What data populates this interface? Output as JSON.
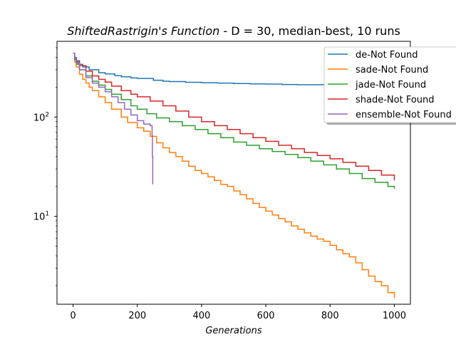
{
  "chart_data": {
    "type": "line",
    "title_math": "ShiftedRastrigin's Function",
    "title_rest": "  - D = 30, median-best, 10 runs",
    "xlabel": "Generations",
    "ylabel": "",
    "yscale": "log",
    "xlim": [
      -50,
      1050
    ],
    "ylim": [
      1.3,
      580
    ],
    "x_ticks": [
      0,
      200,
      400,
      600,
      800,
      1000
    ],
    "x_tick_labels": [
      "0",
      "200",
      "400",
      "600",
      "800",
      "1000"
    ],
    "y_tick_labels": [
      "10",
      "10"
    ],
    "y_tick_exponents": [
      "2",
      "1"
    ],
    "grid": false,
    "legend_position": "upper-right",
    "series": [
      {
        "name": "de-Not Found",
        "color": "#1f77b4",
        "points": [
          [
            0,
            440
          ],
          [
            5,
            400
          ],
          [
            10,
            370
          ],
          [
            20,
            340
          ],
          [
            30,
            320
          ],
          [
            50,
            300
          ],
          [
            80,
            280
          ],
          [
            100,
            272
          ],
          [
            130,
            262
          ],
          [
            150,
            255
          ],
          [
            180,
            248
          ],
          [
            200,
            245
          ],
          [
            250,
            235
          ],
          [
            280,
            230
          ],
          [
            300,
            228
          ],
          [
            350,
            224
          ],
          [
            400,
            222
          ],
          [
            450,
            220
          ],
          [
            500,
            218
          ],
          [
            550,
            216
          ],
          [
            600,
            215
          ],
          [
            650,
            213
          ],
          [
            700,
            212
          ],
          [
            750,
            212
          ],
          [
            800,
            211
          ],
          [
            850,
            210
          ],
          [
            900,
            210
          ],
          [
            950,
            209
          ],
          [
            1000,
            209
          ]
        ]
      },
      {
        "name": "sade-Not Found",
        "color": "#ff7f0e",
        "points": [
          [
            0,
            440
          ],
          [
            5,
            360
          ],
          [
            10,
            320
          ],
          [
            20,
            270
          ],
          [
            30,
            240
          ],
          [
            40,
            220
          ],
          [
            50,
            200
          ],
          [
            60,
            185
          ],
          [
            80,
            160
          ],
          [
            100,
            140
          ],
          [
            120,
            120
          ],
          [
            150,
            100
          ],
          [
            170,
            88
          ],
          [
            200,
            78
          ],
          [
            220,
            72
          ],
          [
            240,
            64
          ],
          [
            260,
            55
          ],
          [
            280,
            49
          ],
          [
            300,
            44
          ],
          [
            320,
            40
          ],
          [
            340,
            36
          ],
          [
            360,
            32
          ],
          [
            380,
            29
          ],
          [
            400,
            27
          ],
          [
            420,
            25
          ],
          [
            440,
            23
          ],
          [
            460,
            21
          ],
          [
            480,
            20
          ],
          [
            500,
            18
          ],
          [
            520,
            16.5
          ],
          [
            540,
            15
          ],
          [
            560,
            13.5
          ],
          [
            580,
            12.3
          ],
          [
            600,
            11.3
          ],
          [
            620,
            10.3
          ],
          [
            640,
            9.5
          ],
          [
            660,
            8.8
          ],
          [
            680,
            8.0
          ],
          [
            700,
            7.4
          ],
          [
            720,
            6.8
          ],
          [
            740,
            6.3
          ],
          [
            760,
            5.9
          ],
          [
            780,
            5.6
          ],
          [
            800,
            5.1
          ],
          [
            820,
            4.6
          ],
          [
            840,
            4.2
          ],
          [
            860,
            3.9
          ],
          [
            880,
            3.4
          ],
          [
            900,
            2.9
          ],
          [
            920,
            2.5
          ],
          [
            940,
            2.2
          ],
          [
            960,
            2.0
          ],
          [
            980,
            1.7
          ],
          [
            1000,
            1.5
          ]
        ]
      },
      {
        "name": "jade-Not Found",
        "color": "#2ca02c",
        "points": [
          [
            0,
            440
          ],
          [
            5,
            380
          ],
          [
            10,
            340
          ],
          [
            20,
            300
          ],
          [
            40,
            260
          ],
          [
            60,
            230
          ],
          [
            80,
            210
          ],
          [
            100,
            190
          ],
          [
            120,
            170
          ],
          [
            150,
            150
          ],
          [
            180,
            130
          ],
          [
            200,
            120
          ],
          [
            230,
            108
          ],
          [
            260,
            98
          ],
          [
            300,
            90
          ],
          [
            340,
            82
          ],
          [
            380,
            75
          ],
          [
            420,
            68
          ],
          [
            460,
            62
          ],
          [
            500,
            56
          ],
          [
            540,
            52
          ],
          [
            580,
            48
          ],
          [
            620,
            45
          ],
          [
            660,
            42
          ],
          [
            700,
            39
          ],
          [
            740,
            36
          ],
          [
            780,
            33
          ],
          [
            820,
            30
          ],
          [
            860,
            27
          ],
          [
            900,
            24
          ],
          [
            940,
            22
          ],
          [
            980,
            20
          ],
          [
            1000,
            19
          ]
        ]
      },
      {
        "name": "shade-Not Found",
        "color": "#d62728",
        "points": [
          [
            0,
            440
          ],
          [
            5,
            390
          ],
          [
            10,
            360
          ],
          [
            20,
            330
          ],
          [
            40,
            290
          ],
          [
            60,
            260
          ],
          [
            80,
            240
          ],
          [
            100,
            225
          ],
          [
            120,
            205
          ],
          [
            150,
            185
          ],
          [
            180,
            170
          ],
          [
            200,
            160
          ],
          [
            240,
            145
          ],
          [
            280,
            130
          ],
          [
            320,
            115
          ],
          [
            360,
            100
          ],
          [
            400,
            90
          ],
          [
            440,
            82
          ],
          [
            480,
            75
          ],
          [
            520,
            68
          ],
          [
            560,
            62
          ],
          [
            600,
            57
          ],
          [
            640,
            52
          ],
          [
            680,
            48
          ],
          [
            720,
            44
          ],
          [
            760,
            41
          ],
          [
            800,
            38
          ],
          [
            840,
            35
          ],
          [
            880,
            32
          ],
          [
            920,
            29
          ],
          [
            960,
            26
          ],
          [
            1000,
            23
          ]
        ]
      },
      {
        "name": "ensemble-Not Found",
        "color": "#9467bd",
        "points": [
          [
            0,
            440
          ],
          [
            5,
            390
          ],
          [
            10,
            350
          ],
          [
            20,
            300
          ],
          [
            40,
            250
          ],
          [
            60,
            220
          ],
          [
            80,
            200
          ],
          [
            100,
            180
          ],
          [
            120,
            160
          ],
          [
            140,
            140
          ],
          [
            160,
            120
          ],
          [
            180,
            105
          ],
          [
            200,
            92
          ],
          [
            220,
            85
          ],
          [
            240,
            82
          ],
          [
            245,
            82
          ],
          [
            246,
            65
          ],
          [
            247,
            40
          ],
          [
            248,
            21
          ]
        ]
      }
    ]
  }
}
